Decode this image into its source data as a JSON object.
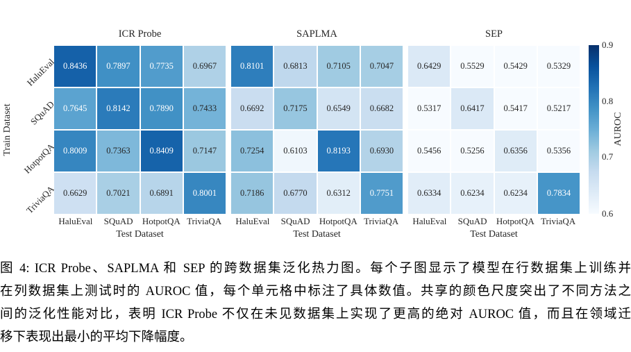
{
  "chart_data": {
    "type": "heatmap",
    "subplots": [
      {
        "title": "ICR Probe",
        "values": [
          [
            0.8436,
            0.7897,
            0.7735,
            0.6967
          ],
          [
            0.7645,
            0.8142,
            0.789,
            0.7433
          ],
          [
            0.8009,
            0.7363,
            0.8409,
            0.7147
          ],
          [
            0.6629,
            0.7021,
            0.6891,
            0.8001
          ]
        ]
      },
      {
        "title": "SAPLMA",
        "values": [
          [
            0.8101,
            0.6813,
            0.7105,
            0.7047
          ],
          [
            0.6692,
            0.7175,
            0.6549,
            0.6682
          ],
          [
            0.7254,
            0.6103,
            0.8193,
            0.693
          ],
          [
            0.7186,
            0.677,
            0.6312,
            0.7751
          ]
        ]
      },
      {
        "title": "SEP",
        "values": [
          [
            0.6429,
            0.5529,
            0.5429,
            0.5329
          ],
          [
            0.5317,
            0.6417,
            0.5417,
            0.5217
          ],
          [
            0.5456,
            0.5256,
            0.6356,
            0.5356
          ],
          [
            0.6334,
            0.6234,
            0.6234,
            0.7834
          ]
        ]
      }
    ],
    "row_labels": [
      "HaluEval",
      "SQuAD",
      "HotpotQA",
      "TriviaQA"
    ],
    "col_labels": [
      "HaluEval",
      "SQuAD",
      "HotpotQA",
      "TriviaQA"
    ],
    "xlabel": "Test Dataset",
    "ylabel": "Train Dataset",
    "colormap": "Blues",
    "vmin": 0.6,
    "vmax": 0.9,
    "colorbar_label": "AUROC",
    "colorbar_ticks": [
      "0.9",
      "0.8",
      "0.7",
      "0.6"
    ],
    "annotation_format": "4 decimals in each cell"
  },
  "caption": {
    "lines": [
      "图 4: ICR Probe、SAPLMA 和 SEP 的跨数据集泛化热力图。每个子图显示了模型在行数据集上训练并",
      "在列数据集上测试时的 AUROC 值，每个单元格中标注了具体数值。共享的颜色尺度突出了不同方法之",
      "间的泛化性能对比，表明 ICR Probe 不仅在未见数据集上实现了更高的绝对 AUROC 值，而且在领域迁",
      "移下表现出最小的平均下降幅度。"
    ]
  }
}
